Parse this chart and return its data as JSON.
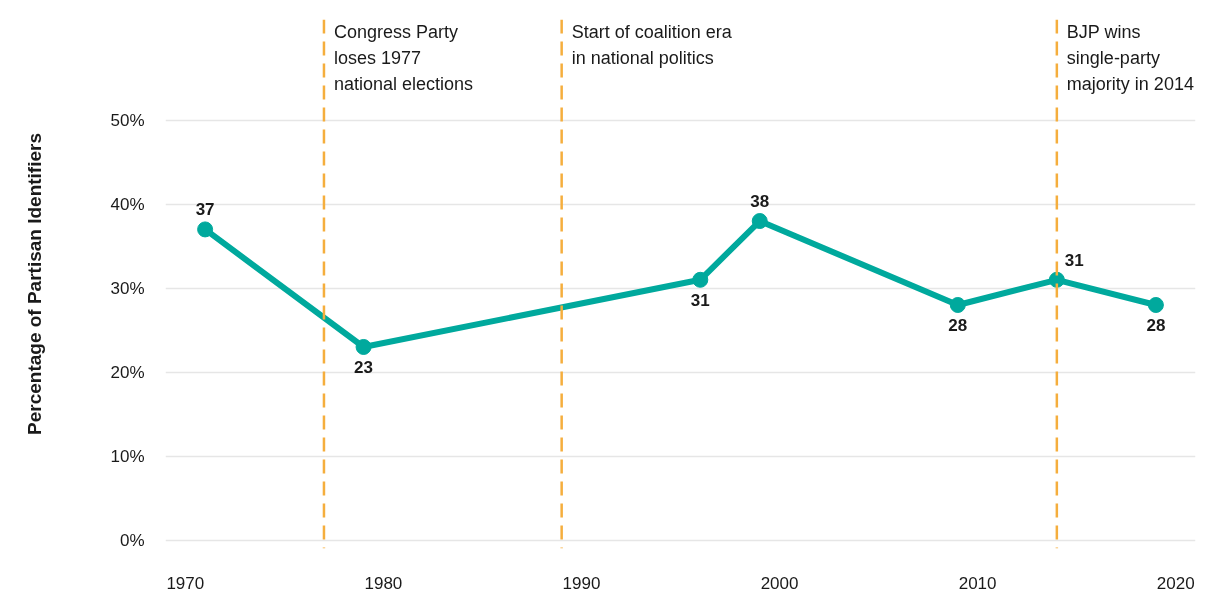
{
  "chart_data": {
    "type": "line",
    "ylabel": "Percentage of Partisan Identifiers",
    "x": [
      1971,
      1979,
      1996,
      1999,
      2009,
      2014,
      2019
    ],
    "series": [
      {
        "color": "#00a99d",
        "values": [
          37,
          23,
          31,
          38,
          28,
          31,
          28
        ]
      }
    ],
    "xlim": [
      1969,
      2021
    ],
    "xticks": [
      1970,
      1980,
      1990,
      2000,
      2010,
      2020
    ],
    "ylim": [
      -1,
      62
    ],
    "yticks": [
      {
        "value": 0,
        "label": "0%"
      },
      {
        "value": 10,
        "label": "10%"
      },
      {
        "value": 20,
        "label": "20%"
      },
      {
        "value": 30,
        "label": "30%"
      },
      {
        "value": 40,
        "label": "40%"
      },
      {
        "value": 50,
        "label": "50%"
      }
    ],
    "ref_lines": [
      {
        "axis": "x",
        "value": 1977,
        "label": "Congress Party\nloses 1977\nnational elections",
        "color": "#f5ae3d",
        "line_style": "dashed"
      },
      {
        "axis": "x",
        "value": 1989,
        "label": "Start of coalition era\nin national politics",
        "color": "#f5ae3d",
        "line_style": "dashed"
      },
      {
        "axis": "x",
        "value": 2014,
        "label": "BJP wins\nsingle-party\nmajority in 2014",
        "color": "#f5ae3d",
        "line_style": "dashed"
      }
    ],
    "grid": "y",
    "marker": "circle",
    "line_style": "solid",
    "data_labels": true
  }
}
